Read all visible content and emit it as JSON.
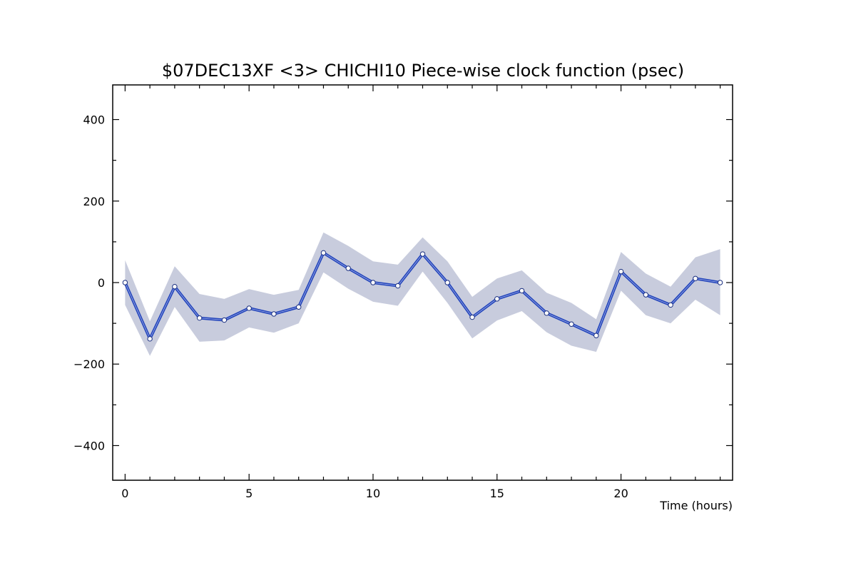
{
  "chart_data": {
    "type": "line",
    "title": "$07DEC13XF <3>  CHICHI10  Piece-wise clock function (psec)",
    "xlabel": "Time (hours)",
    "ylabel": "",
    "xlim": [
      -0.5,
      24.5
    ],
    "ylim": [
      -485,
      485
    ],
    "x_ticks": [
      0,
      5,
      10,
      15,
      20
    ],
    "x_tick_labels": [
      "0",
      "5",
      "10",
      "15",
      "20"
    ],
    "y_ticks": [
      400,
      200,
      0,
      -200,
      -400
    ],
    "y_tick_labels": [
      "400",
      "200",
      "0",
      "−200",
      "−400"
    ],
    "grid": false,
    "series": [
      {
        "x": [
          0,
          1,
          2,
          3,
          4,
          5,
          6,
          7,
          8,
          9,
          10,
          11,
          12,
          13,
          14,
          15,
          16,
          17,
          18,
          19,
          20,
          21,
          22,
          23,
          24
        ],
        "values": [
          0,
          -138,
          -10,
          -87,
          -92,
          -63,
          -77,
          -60,
          73,
          35,
          0,
          -8,
          70,
          0,
          -85,
          -40,
          -20,
          -75,
          -102,
          -130,
          27,
          -30,
          -55,
          10,
          0
        ],
        "lower": [
          -55,
          -180,
          -60,
          -145,
          -142,
          -110,
          -123,
          -100,
          25,
          -15,
          -47,
          -57,
          27,
          -50,
          -137,
          -93,
          -70,
          -122,
          -155,
          -170,
          -20,
          -80,
          -100,
          -42,
          -80
        ],
        "upper": [
          55,
          -95,
          40,
          -28,
          -40,
          -16,
          -30,
          -18,
          123,
          90,
          52,
          44,
          111,
          52,
          -35,
          10,
          30,
          -25,
          -50,
          -90,
          75,
          22,
          -10,
          62,
          82
        ],
        "color": "#2244bb",
        "band_color": "#c8ccdd"
      }
    ]
  }
}
